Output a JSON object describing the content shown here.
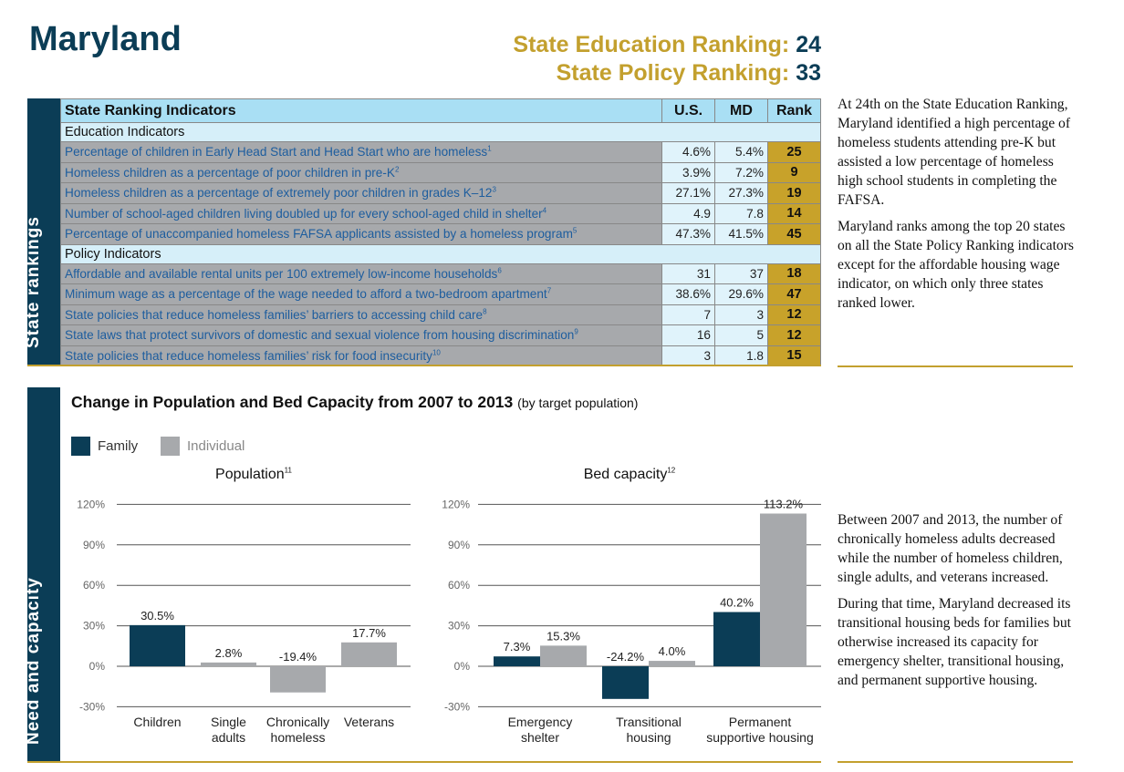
{
  "title": "Maryland",
  "rankings": {
    "education_label": "State Education Ranking:",
    "education_value": "24",
    "policy_label": "State Policy Ranking:",
    "policy_value": "33"
  },
  "sidebars": {
    "top": "State rankings",
    "bottom": "Need and capacity"
  },
  "table": {
    "headers": [
      "State Ranking Indicators",
      "U.S.",
      "MD",
      "Rank"
    ],
    "sections": [
      {
        "title": "Education Indicators",
        "rows": [
          {
            "label": "Percentage of children in Early Head Start and Head Start who are homeless",
            "note": "1",
            "us": "4.6%",
            "md": "5.4%",
            "rank": "25"
          },
          {
            "label": "Homeless children as a percentage of poor children in pre-K",
            "note": "2",
            "us": "3.9%",
            "md": "7.2%",
            "rank": "9"
          },
          {
            "label": "Homeless children as a percentage of extremely poor children in grades K–12",
            "note": "3",
            "us": "27.1%",
            "md": "27.3%",
            "rank": "19"
          },
          {
            "label": "Number of school-aged children living doubled up for every school-aged child in shelter",
            "note": "4",
            "us": "4.9",
            "md": "7.8",
            "rank": "14"
          },
          {
            "label": "Percentage of unaccompanied homeless FAFSA applicants assisted by a homeless program",
            "note": "5",
            "us": "47.3%",
            "md": "41.5%",
            "rank": "45"
          }
        ]
      },
      {
        "title": "Policy Indicators",
        "rows": [
          {
            "label": "Affordable and available rental units per 100 extremely low-income households",
            "note": "6",
            "us": "31",
            "md": "37",
            "rank": "18"
          },
          {
            "label": "Minimum wage as a percentage of the wage needed to afford a two-bedroom apartment",
            "note": "7",
            "us": "38.6%",
            "md": "29.6%",
            "rank": "47"
          },
          {
            "label": "State policies that reduce homeless families’ barriers to accessing child care",
            "note": "8",
            "us": "7",
            "md": "3",
            "rank": "12"
          },
          {
            "label": "State laws that protect survivors of domestic and sexual violence from housing discrimination",
            "note": "9",
            "us": "16",
            "md": "5",
            "rank": "12"
          },
          {
            "label": "State policies that reduce homeless families’ risk for food insecurity",
            "note": "10",
            "us": "3",
            "md": "1.8",
            "rank": "15"
          }
        ]
      }
    ]
  },
  "side_text_top": [
    "At 24th on the State Education Ranking, Maryland identified a high percentage of homeless students attending pre-K but assisted a low percentage of homeless high school students in completing the FAFSA.",
    "Maryland ranks among the top 20 states on all the State Policy Ranking indicators except for the affordable housing wage indicator, on which only three states ranked lower."
  ],
  "side_text_bottom": [
    "Between 2007 and 2013, the number of chronically homeless adults decreased while the number of homeless children, single adults, and veterans increased.",
    "During that time, Maryland decreased its transitional housing beds for families but otherwise increased its capacity for emergency shelter, transitional housing, and permanent supportive housing."
  ],
  "colors": {
    "family": "#0b3d56",
    "individual": "#a7a9ac",
    "gold": "#c3a02e"
  },
  "chart_data": [
    {
      "type": "bar",
      "title": "Change in Population and Bed Capacity from 2007 to 2013",
      "subtitle": "(by target population)",
      "legend": [
        "Family",
        "Individual"
      ],
      "legend_position": "top-left",
      "panel_title": "Population",
      "panel_note": "11",
      "ylim": [
        -30,
        120
      ],
      "yticks": [
        "120%",
        "90%",
        "60%",
        "30%",
        "0%",
        "-30%"
      ],
      "ytick_values": [
        120,
        90,
        60,
        30,
        0,
        -30
      ],
      "categories": [
        [
          "Children"
        ],
        [
          "Single",
          "adults"
        ],
        [
          "Chronically",
          "homeless"
        ],
        [
          "Veterans"
        ]
      ],
      "series": [
        {
          "name": "Family",
          "values": [
            30.5,
            null,
            null,
            null
          ]
        },
        {
          "name": "Individual",
          "values": [
            null,
            2.8,
            -19.4,
            17.7
          ]
        }
      ],
      "labels": [
        [
          "30.5%",
          null,
          null,
          null
        ],
        [
          null,
          "2.8%",
          "-19.4%",
          "17.7%"
        ]
      ]
    },
    {
      "type": "bar",
      "panel_title": "Bed capacity",
      "panel_note": "12",
      "ylim": [
        -30,
        120
      ],
      "yticks": [
        "120%",
        "90%",
        "60%",
        "30%",
        "0%",
        "-30%"
      ],
      "ytick_values": [
        120,
        90,
        60,
        30,
        0,
        -30
      ],
      "categories": [
        [
          "Emergency",
          "shelter"
        ],
        [
          "Transitional",
          "housing"
        ],
        [
          "Permanent",
          "supportive housing"
        ]
      ],
      "series": [
        {
          "name": "Family",
          "values": [
            7.3,
            -24.2,
            40.2
          ]
        },
        {
          "name": "Individual",
          "values": [
            15.3,
            4.0,
            113.2
          ]
        }
      ],
      "labels": [
        [
          "7.3%",
          "-24.2%",
          "40.2%"
        ],
        [
          "15.3%",
          "4.0%",
          "113.2%"
        ]
      ]
    }
  ]
}
